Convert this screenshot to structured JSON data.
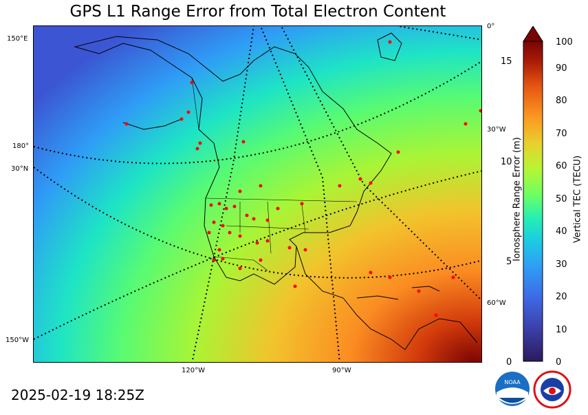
{
  "title": "GPS L1 Range Error from Total Electron Content",
  "timestamp": "2025-02-19 18:25Z",
  "map_labels": {
    "lon_bottom": [
      "120°W",
      "90°W"
    ],
    "lat_left": [
      "150°E",
      "180°",
      "30°N",
      "150°W"
    ],
    "right_edge": [
      "0°",
      "30°W",
      "60°W"
    ]
  },
  "colorbar": {
    "left_title": "Ionosphere Range Error (m)",
    "right_title": "Vertical TEC (TECU)",
    "left_ticks": [
      "15",
      "10",
      "5",
      "0"
    ],
    "right_ticks": [
      "100",
      "90",
      "80",
      "70",
      "60",
      "50",
      "40",
      "30",
      "20",
      "10",
      "0"
    ],
    "tec_range": [
      0,
      100
    ],
    "range_error_m": [
      0,
      16
    ],
    "colormap": [
      "#2b1a5c",
      "#3b3fa8",
      "#3d6ae6",
      "#2ea0f5",
      "#1ccde0",
      "#27f0b0",
      "#6dff62",
      "#b6f535",
      "#e8d02e",
      "#fb9a22",
      "#e65513",
      "#a71a06",
      "#7a0403"
    ]
  },
  "logos": [
    "NOAA",
    "NATIONAL WEATHER SERVICE"
  ]
}
